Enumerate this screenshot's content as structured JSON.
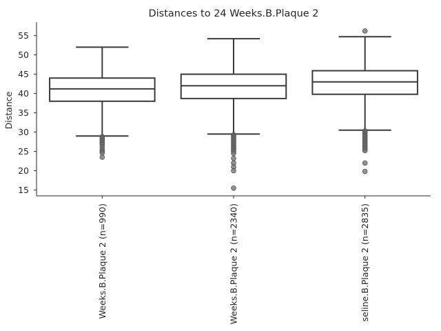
{
  "chart_data": {
    "type": "box",
    "title": "Distances to 24 Weeks.B.Plaque 2",
    "xlabel": "",
    "ylabel": "Distance",
    "yticks": [
      15,
      20,
      25,
      30,
      35,
      40,
      45,
      50,
      55
    ],
    "ylim": [
      13.5,
      58.5
    ],
    "categories": [
      "Weeks.B.Plaque 2 (n=990)",
      "Weeks.B.Plaque 2 (n=2340)",
      "seline.B.Plaque 2 (n=2835)"
    ],
    "boxes": [
      {
        "label": "Weeks.B.Plaque 2 (n=990)",
        "whislo": 29.0,
        "q1": 38.0,
        "med": 41.2,
        "q3": 44.0,
        "whishi": 52.0,
        "fliers": [
          28.8,
          28.4,
          28.0,
          27.6,
          27.2,
          26.8,
          26.2,
          25.5,
          25.0,
          24.6,
          23.5
        ]
      },
      {
        "label": "Weeks.B.Plaque 2 (n=2340)",
        "whislo": 29.5,
        "q1": 38.7,
        "med": 42.0,
        "q3": 45.0,
        "whishi": 54.2,
        "fliers": [
          29.3,
          29.0,
          28.6,
          28.2,
          27.8,
          27.4,
          27.0,
          26.6,
          26.2,
          25.8,
          25.4,
          25.0,
          24.5,
          23.2,
          22.0,
          21.0,
          20.0,
          15.5
        ]
      },
      {
        "label": "seline.B.Plaque 2 (n=2835)",
        "whislo": 30.5,
        "q1": 39.8,
        "med": 43.0,
        "q3": 45.9,
        "whishi": 54.7,
        "fliers": [
          56.2,
          30.3,
          30.0,
          29.6,
          29.2,
          28.8,
          28.4,
          28.0,
          27.6,
          27.2,
          26.8,
          26.4,
          26.0,
          25.6,
          25.2,
          22.0,
          19.8
        ]
      }
    ],
    "grid": false,
    "colors": {
      "box_edge": "#3a3a3a",
      "box_fill": "#ffffff",
      "flier": "#6e6e6e",
      "text": "#262626"
    }
  }
}
